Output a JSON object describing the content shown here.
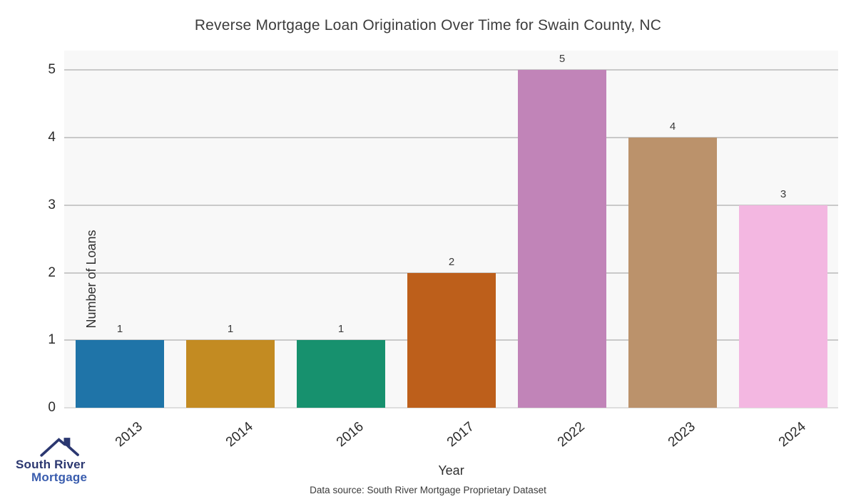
{
  "title": "Reverse Mortgage Loan Origination Over Time for Swain County, NC",
  "footer": {
    "data_source": "Data source: South River Mortgage Proprietary Dataset"
  },
  "logo": {
    "icon": "house-roof-icon",
    "line1": "South River",
    "line2": "Mortgage",
    "roof_color": "#2b3770",
    "line1_color": "#2b3770",
    "line2_color": "#3a5dae"
  },
  "chart_data": {
    "type": "bar",
    "categories": [
      "2013",
      "2014",
      "2016",
      "2017",
      "2022",
      "2023",
      "2024"
    ],
    "values": [
      1,
      1,
      1,
      2,
      5,
      4,
      3
    ],
    "bar_colors": [
      "#1f74a8",
      "#c38b22",
      "#17916e",
      "#bd5f1b",
      "#c184b8",
      "#bb926b",
      "#f3b7e1"
    ],
    "title": "Reverse Mortgage Loan Origination Over Time for Swain County, NC",
    "xlabel": "Year",
    "ylabel": "Number of Loans",
    "ylim": [
      0,
      5.29
    ],
    "yticks": [
      0,
      1,
      2,
      3,
      4,
      5
    ],
    "grid": true,
    "value_labels": true,
    "plot_background": "#f8f8f8",
    "gridline_color": "#c9c9c9",
    "legend": "none",
    "x_tick_rotation_deg": -40
  }
}
